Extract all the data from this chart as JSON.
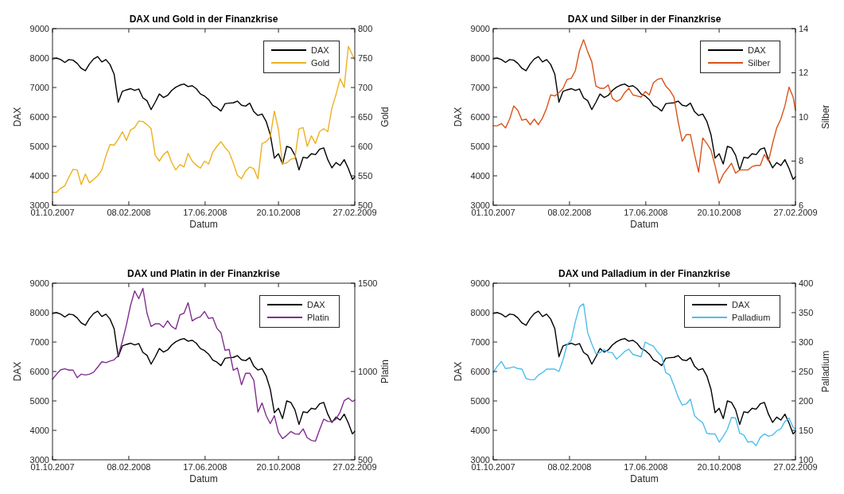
{
  "chart_data": [
    {
      "type": "line",
      "title": "DAX und Gold in der Finanzkrise",
      "xlabel": "Datum",
      "ylabel": "DAX",
      "y2label": "Gold",
      "legend": "top right",
      "line_style": "solid",
      "x": [
        "2007-10-01",
        "2007-10-08",
        "2007-10-15",
        "2007-10-22",
        "2007-10-29",
        "2007-11-05",
        "2007-11-12",
        "2007-11-19",
        "2007-11-26",
        "2007-12-03",
        "2007-12-10",
        "2007-12-17",
        "2007-12-24",
        "2007-12-31",
        "2008-01-07",
        "2008-01-14",
        "2008-01-21",
        "2008-01-28",
        "2008-02-04",
        "2008-02-11",
        "2008-02-18",
        "2008-02-25",
        "2008-03-03",
        "2008-03-10",
        "2008-03-17",
        "2008-03-24",
        "2008-03-31",
        "2008-04-07",
        "2008-04-14",
        "2008-04-21",
        "2008-04-28",
        "2008-05-05",
        "2008-05-12",
        "2008-05-19",
        "2008-05-26",
        "2008-06-02",
        "2008-06-09",
        "2008-06-16",
        "2008-06-23",
        "2008-06-30",
        "2008-07-07",
        "2008-07-14",
        "2008-07-21",
        "2008-07-28",
        "2008-08-04",
        "2008-08-11",
        "2008-08-18",
        "2008-08-25",
        "2008-09-01",
        "2008-09-08",
        "2008-09-15",
        "2008-09-22",
        "2008-09-29",
        "2008-10-06",
        "2008-10-13",
        "2008-10-20",
        "2008-10-27",
        "2008-11-03",
        "2008-11-10",
        "2008-11-17",
        "2008-11-24",
        "2008-12-01",
        "2008-12-08",
        "2008-12-15",
        "2008-12-22",
        "2008-12-29",
        "2009-01-05",
        "2009-01-12",
        "2009-01-19",
        "2009-01-26",
        "2009-02-02",
        "2009-02-09",
        "2009-02-16",
        "2009-02-23",
        "2009-02-27"
      ],
      "xlim": [
        "2007-10-01",
        "2009-02-27"
      ],
      "xticks": [
        {
          "value": "2007-10-01",
          "label": "01.10.2007"
        },
        {
          "value": "2008-02-08",
          "label": "08.02.2008"
        },
        {
          "value": "2008-06-17",
          "label": "17.06.2008"
        },
        {
          "value": "2008-10-20",
          "label": "20.10.2008"
        },
        {
          "value": "2009-02-27",
          "label": "27.02.2009"
        }
      ],
      "ylim": [
        3000,
        9000
      ],
      "yticks": [
        3000,
        4000,
        5000,
        6000,
        7000,
        8000,
        9000
      ],
      "y2lim": [
        500,
        800
      ],
      "y2ticks": [
        500,
        550,
        600,
        650,
        700,
        750,
        800
      ],
      "series": [
        {
          "name": "DAX",
          "color": "#000000",
          "values": [
            7970,
            8000,
            7950,
            7850,
            7950,
            7930,
            7820,
            7650,
            7570,
            7800,
            7970,
            8050,
            7870,
            7950,
            7780,
            7450,
            6500,
            6870,
            6920,
            6960,
            6900,
            6950,
            6650,
            6550,
            6250,
            6500,
            6780,
            6660,
            6730,
            6900,
            7010,
            7080,
            7120,
            7030,
            7060,
            6960,
            6780,
            6710,
            6590,
            6390,
            6320,
            6200,
            6450,
            6470,
            6480,
            6540,
            6400,
            6370,
            6470,
            6180,
            6050,
            6100,
            5850,
            5400,
            4600,
            4750,
            4400,
            5000,
            4950,
            4700,
            4200,
            4630,
            4600,
            4750,
            4720,
            4900,
            4950,
            4550,
            4270,
            4450,
            4350,
            4550,
            4250,
            3880,
            3970
          ]
        },
        {
          "name": "Gold",
          "color": "#edb120",
          "axis": "y2",
          "values": [
            522,
            522,
            529,
            533,
            548,
            561,
            560,
            535,
            553,
            538,
            544,
            550,
            560,
            584,
            603,
            602,
            612,
            625,
            610,
            628,
            632,
            643,
            642,
            637,
            630,
            585,
            575,
            586,
            592,
            573,
            560,
            569,
            565,
            588,
            575,
            568,
            563,
            575,
            570,
            590,
            600,
            608,
            598,
            590,
            572,
            551,
            545,
            558,
            565,
            562,
            545,
            605,
            608,
            616,
            660,
            628,
            570,
            572,
            578,
            580,
            630,
            632,
            600,
            618,
            605,
            625,
            630,
            625,
            665,
            688,
            715,
            700,
            770,
            755,
            747
          ]
        }
      ]
    },
    {
      "type": "line",
      "title": "DAX und Silber in der Finanzkrise",
      "xlabel": "Datum",
      "ylabel": "DAX",
      "y2label": "Silber",
      "legend": "top right",
      "line_style": "solid",
      "x": [
        "2007-10-01",
        "2007-10-08",
        "2007-10-15",
        "2007-10-22",
        "2007-10-29",
        "2007-11-05",
        "2007-11-12",
        "2007-11-19",
        "2007-11-26",
        "2007-12-03",
        "2007-12-10",
        "2007-12-17",
        "2007-12-24",
        "2007-12-31",
        "2008-01-07",
        "2008-01-14",
        "2008-01-21",
        "2008-01-28",
        "2008-02-04",
        "2008-02-11",
        "2008-02-18",
        "2008-02-25",
        "2008-03-03",
        "2008-03-10",
        "2008-03-17",
        "2008-03-24",
        "2008-03-31",
        "2008-04-07",
        "2008-04-14",
        "2008-04-21",
        "2008-04-28",
        "2008-05-05",
        "2008-05-12",
        "2008-05-19",
        "2008-05-26",
        "2008-06-02",
        "2008-06-09",
        "2008-06-16",
        "2008-06-23",
        "2008-06-30",
        "2008-07-07",
        "2008-07-14",
        "2008-07-21",
        "2008-07-28",
        "2008-08-04",
        "2008-08-11",
        "2008-08-18",
        "2008-08-25",
        "2008-09-01",
        "2008-09-08",
        "2008-09-15",
        "2008-09-22",
        "2008-09-29",
        "2008-10-06",
        "2008-10-13",
        "2008-10-20",
        "2008-10-27",
        "2008-11-03",
        "2008-11-10",
        "2008-11-17",
        "2008-11-24",
        "2008-12-01",
        "2008-12-08",
        "2008-12-15",
        "2008-12-22",
        "2008-12-29",
        "2009-01-05",
        "2009-01-12",
        "2009-01-19",
        "2009-01-26",
        "2009-02-02",
        "2009-02-09",
        "2009-02-16",
        "2009-02-23",
        "2009-02-27"
      ],
      "xlim": [
        "2007-10-01",
        "2009-02-27"
      ],
      "xticks": [
        {
          "value": "2007-10-01",
          "label": "01.10.2007"
        },
        {
          "value": "2008-02-08",
          "label": "08.02.2008"
        },
        {
          "value": "2008-06-17",
          "label": "17.06.2008"
        },
        {
          "value": "2008-10-20",
          "label": "20.10.2008"
        },
        {
          "value": "2009-02-27",
          "label": "27.02.2009"
        }
      ],
      "ylim": [
        3000,
        9000
      ],
      "yticks": [
        3000,
        4000,
        5000,
        6000,
        7000,
        8000,
        9000
      ],
      "y2lim": [
        6,
        14
      ],
      "y2ticks": [
        6,
        8,
        10,
        12,
        14
      ],
      "series": [
        {
          "name": "DAX",
          "color": "#000000",
          "values": [
            7970,
            8000,
            7950,
            7850,
            7950,
            7930,
            7820,
            7650,
            7570,
            7800,
            7970,
            8050,
            7870,
            7950,
            7780,
            7450,
            6500,
            6870,
            6920,
            6960,
            6900,
            6950,
            6650,
            6550,
            6250,
            6500,
            6780,
            6660,
            6730,
            6900,
            7010,
            7080,
            7120,
            7030,
            7060,
            6960,
            6780,
            6710,
            6590,
            6390,
            6320,
            6200,
            6450,
            6470,
            6480,
            6540,
            6400,
            6370,
            6470,
            6180,
            6050,
            6100,
            5850,
            5400,
            4600,
            4750,
            4400,
            5000,
            4950,
            4700,
            4200,
            4630,
            4600,
            4750,
            4720,
            4900,
            4950,
            4550,
            4270,
            4450,
            4350,
            4550,
            4250,
            3880,
            3970
          ]
        },
        {
          "name": "Silber",
          "color": "#d95319",
          "axis": "y2",
          "values": [
            9.6,
            9.6,
            9.7,
            9.5,
            9.9,
            10.5,
            10.3,
            9.85,
            9.9,
            9.65,
            9.9,
            9.65,
            9.95,
            10.4,
            11.0,
            10.95,
            11.1,
            11.3,
            11.7,
            11.75,
            12.1,
            13.0,
            13.5,
            12.95,
            12.5,
            11.4,
            11.3,
            11.3,
            11.45,
            10.85,
            10.7,
            10.8,
            11.1,
            11.3,
            11.0,
            10.95,
            10.9,
            11.15,
            11.0,
            11.55,
            11.7,
            11.75,
            11.4,
            11.2,
            10.9,
            9.8,
            8.9,
            9.2,
            9.2,
            8.3,
            7.5,
            9.05,
            8.8,
            8.5,
            7.8,
            7.0,
            7.4,
            7.65,
            7.9,
            7.45,
            7.6,
            7.6,
            7.6,
            7.75,
            7.8,
            7.8,
            8.3,
            8.0,
            8.8,
            9.5,
            9.9,
            10.5,
            11.35,
            10.9,
            10.3
          ]
        }
      ]
    },
    {
      "type": "line",
      "title": "DAX und Platin in der Finanzkrise",
      "xlabel": "Datum",
      "ylabel": "DAX",
      "y2label": "Platin",
      "legend": "top right",
      "line_style": "solid",
      "x": [
        "2007-10-01",
        "2007-10-08",
        "2007-10-15",
        "2007-10-22",
        "2007-10-29",
        "2007-11-05",
        "2007-11-12",
        "2007-11-19",
        "2007-11-26",
        "2007-12-03",
        "2007-12-10",
        "2007-12-17",
        "2007-12-24",
        "2007-12-31",
        "2008-01-07",
        "2008-01-14",
        "2008-01-21",
        "2008-01-28",
        "2008-02-04",
        "2008-02-11",
        "2008-02-18",
        "2008-02-25",
        "2008-03-03",
        "2008-03-10",
        "2008-03-17",
        "2008-03-24",
        "2008-03-31",
        "2008-04-07",
        "2008-04-14",
        "2008-04-21",
        "2008-04-28",
        "2008-05-05",
        "2008-05-12",
        "2008-05-19",
        "2008-05-26",
        "2008-06-02",
        "2008-06-09",
        "2008-06-16",
        "2008-06-23",
        "2008-06-30",
        "2008-07-07",
        "2008-07-14",
        "2008-07-21",
        "2008-07-28",
        "2008-08-04",
        "2008-08-11",
        "2008-08-18",
        "2008-08-25",
        "2008-09-01",
        "2008-09-08",
        "2008-09-15",
        "2008-09-22",
        "2008-09-29",
        "2008-10-06",
        "2008-10-13",
        "2008-10-20",
        "2008-10-27",
        "2008-11-03",
        "2008-11-10",
        "2008-11-17",
        "2008-11-24",
        "2008-12-01",
        "2008-12-08",
        "2008-12-15",
        "2008-12-22",
        "2008-12-29",
        "2009-01-05",
        "2009-01-12",
        "2009-01-19",
        "2009-01-26",
        "2009-02-02",
        "2009-02-09",
        "2009-02-16",
        "2009-02-23",
        "2009-02-27"
      ],
      "xlim": [
        "2007-10-01",
        "2009-02-27"
      ],
      "xticks": [
        {
          "value": "2007-10-01",
          "label": "01.10.2007"
        },
        {
          "value": "2008-02-08",
          "label": "08.02.2008"
        },
        {
          "value": "2008-06-17",
          "label": "17.06.2008"
        },
        {
          "value": "2008-10-20",
          "label": "20.10.2008"
        },
        {
          "value": "2009-02-27",
          "label": "27.02.2009"
        }
      ],
      "ylim": [
        3000,
        9000
      ],
      "yticks": [
        3000,
        4000,
        5000,
        6000,
        7000,
        8000,
        9000
      ],
      "y2lim": [
        500,
        1500
      ],
      "y2ticks": [
        500,
        1000,
        1500
      ],
      "series": [
        {
          "name": "DAX",
          "color": "#000000",
          "values": [
            7970,
            8000,
            7950,
            7850,
            7950,
            7930,
            7820,
            7650,
            7570,
            7800,
            7970,
            8050,
            7870,
            7950,
            7780,
            7450,
            6500,
            6870,
            6920,
            6960,
            6900,
            6950,
            6650,
            6550,
            6250,
            6500,
            6780,
            6660,
            6730,
            6900,
            7010,
            7080,
            7120,
            7030,
            7060,
            6960,
            6780,
            6710,
            6590,
            6390,
            6320,
            6200,
            6450,
            6470,
            6480,
            6540,
            6400,
            6370,
            6470,
            6180,
            6050,
            6100,
            5850,
            5400,
            4600,
            4750,
            4400,
            5000,
            4950,
            4700,
            4200,
            4630,
            4600,
            4750,
            4720,
            4900,
            4950,
            4550,
            4270,
            4450,
            4350,
            4550,
            4250,
            3880,
            3970
          ]
        },
        {
          "name": "Platin",
          "color": "#7e2f8e",
          "axis": "y2",
          "values": [
            956,
            985,
            1010,
            1015,
            1008,
            1008,
            965,
            985,
            980,
            985,
            996,
            1025,
            1055,
            1050,
            1059,
            1066,
            1090,
            1170,
            1265,
            1375,
            1456,
            1412,
            1471,
            1330,
            1255,
            1270,
            1270,
            1250,
            1287,
            1255,
            1240,
            1320,
            1330,
            1390,
            1287,
            1301,
            1310,
            1340,
            1300,
            1305,
            1245,
            1220,
            1120,
            1125,
            1007,
            1020,
            925,
            990,
            990,
            950,
            770,
            822,
            750,
            705,
            750,
            655,
            620,
            638,
            660,
            647,
            645,
            675,
            625,
            610,
            605,
            670,
            730,
            718,
            716,
            730,
            770,
            835,
            850,
            830,
            838
          ]
        }
      ]
    },
    {
      "type": "line",
      "title": "DAX und Palladium in der Finanzkrise",
      "xlabel": "Datum",
      "ylabel": "DAX",
      "y2label": "Palladium",
      "legend": "top right",
      "line_style": "solid",
      "x": [
        "2007-10-01",
        "2007-10-08",
        "2007-10-15",
        "2007-10-22",
        "2007-10-29",
        "2007-11-05",
        "2007-11-12",
        "2007-11-19",
        "2007-11-26",
        "2007-12-03",
        "2007-12-10",
        "2007-12-17",
        "2007-12-24",
        "2007-12-31",
        "2008-01-07",
        "2008-01-14",
        "2008-01-21",
        "2008-01-28",
        "2008-02-04",
        "2008-02-11",
        "2008-02-18",
        "2008-02-25",
        "2008-03-03",
        "2008-03-10",
        "2008-03-17",
        "2008-03-24",
        "2008-03-31",
        "2008-04-07",
        "2008-04-14",
        "2008-04-21",
        "2008-04-28",
        "2008-05-05",
        "2008-05-12",
        "2008-05-19",
        "2008-05-26",
        "2008-06-02",
        "2008-06-09",
        "2008-06-16",
        "2008-06-23",
        "2008-06-30",
        "2008-07-07",
        "2008-07-14",
        "2008-07-21",
        "2008-07-28",
        "2008-08-04",
        "2008-08-11",
        "2008-08-18",
        "2008-08-25",
        "2008-09-01",
        "2008-09-08",
        "2008-09-15",
        "2008-09-22",
        "2008-09-29",
        "2008-10-06",
        "2008-10-13",
        "2008-10-20",
        "2008-10-27",
        "2008-11-03",
        "2008-11-10",
        "2008-11-17",
        "2008-11-24",
        "2008-12-01",
        "2008-12-08",
        "2008-12-15",
        "2008-12-22",
        "2008-12-29",
        "2009-01-05",
        "2009-01-12",
        "2009-01-19",
        "2009-01-26",
        "2009-02-02",
        "2009-02-09",
        "2009-02-16",
        "2009-02-23",
        "2009-02-27"
      ],
      "xlim": [
        "2007-10-01",
        "2009-02-27"
      ],
      "xticks": [
        {
          "value": "2007-10-01",
          "label": "01.10.2007"
        },
        {
          "value": "2008-02-08",
          "label": "08.02.2008"
        },
        {
          "value": "2008-06-17",
          "label": "17.06.2008"
        },
        {
          "value": "2008-10-20",
          "label": "20.10.2008"
        },
        {
          "value": "2009-02-27",
          "label": "27.02.2009"
        }
      ],
      "ylim": [
        3000,
        9000
      ],
      "yticks": [
        3000,
        4000,
        5000,
        6000,
        7000,
        8000,
        9000
      ],
      "y2lim": [
        100,
        400
      ],
      "y2ticks": [
        100,
        150,
        200,
        250,
        300,
        350,
        400
      ],
      "series": [
        {
          "name": "DAX",
          "color": "#000000",
          "values": [
            7970,
            8000,
            7950,
            7850,
            7950,
            7930,
            7820,
            7650,
            7570,
            7800,
            7970,
            8050,
            7870,
            7950,
            7780,
            7450,
            6500,
            6870,
            6920,
            6960,
            6900,
            6950,
            6650,
            6550,
            6250,
            6500,
            6780,
            6660,
            6730,
            6900,
            7010,
            7080,
            7120,
            7030,
            7060,
            6960,
            6780,
            6710,
            6590,
            6390,
            6320,
            6200,
            6450,
            6470,
            6480,
            6540,
            6400,
            6370,
            6470,
            6180,
            6050,
            6100,
            5850,
            5400,
            4600,
            4750,
            4400,
            5000,
            4950,
            4700,
            4200,
            4630,
            4600,
            4750,
            4720,
            4900,
            4950,
            4550,
            4270,
            4450,
            4350,
            4550,
            4250,
            3880,
            3970
          ]
        },
        {
          "name": "Palladium",
          "color": "#4dbeee",
          "axis": "y2",
          "values": [
            248,
            259,
            267,
            255,
            256,
            258,
            255,
            254,
            238,
            236,
            236,
            244,
            248,
            254,
            254,
            254,
            250,
            270,
            296,
            303,
            335,
            360,
            365,
            316,
            297,
            280,
            282,
            287,
            283,
            282,
            271,
            277,
            284,
            288,
            279,
            277,
            275,
            300,
            296,
            293,
            283,
            276,
            248,
            244,
            226,
            207,
            193,
            195,
            203,
            175,
            168,
            163,
            145,
            144,
            144,
            130,
            140,
            152,
            172,
            171,
            145,
            142,
            130,
            131,
            124,
            138,
            144,
            140,
            142,
            149,
            153,
            165,
            171,
            155,
            153
          ]
        }
      ]
    }
  ]
}
